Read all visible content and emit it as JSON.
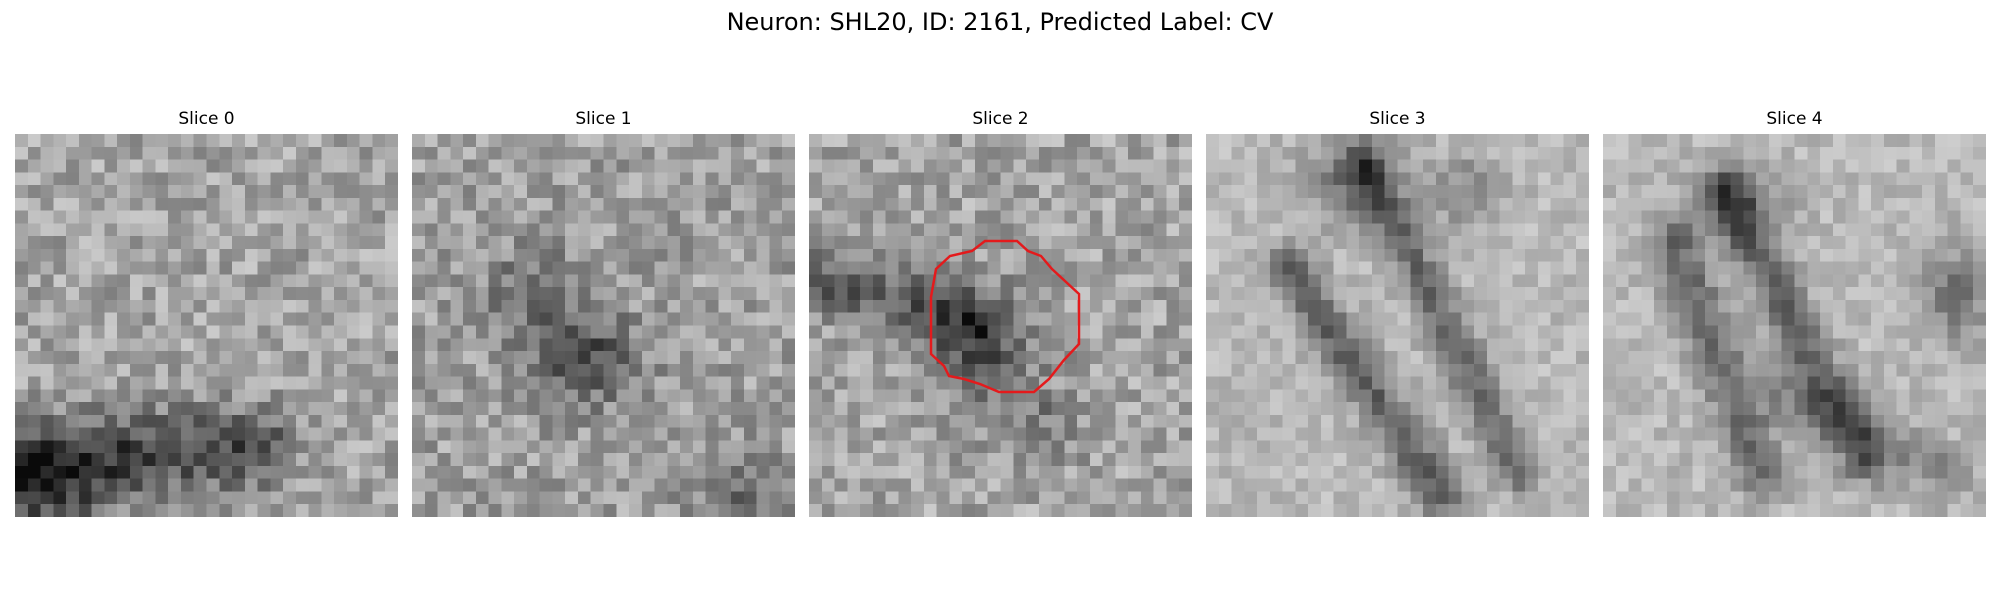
{
  "figure": {
    "title": "Neuron: SHL20, ID: 2161, Predicted Label: CV"
  },
  "panels": [
    {
      "title": "Slice 0"
    },
    {
      "title": "Slice 1"
    },
    {
      "title": "Slice 2"
    },
    {
      "title": "Slice 3"
    },
    {
      "title": "Slice 4"
    }
  ],
  "overlay": {
    "panel_index": 2,
    "shape": "contour",
    "color": "#e41a1c"
  }
}
